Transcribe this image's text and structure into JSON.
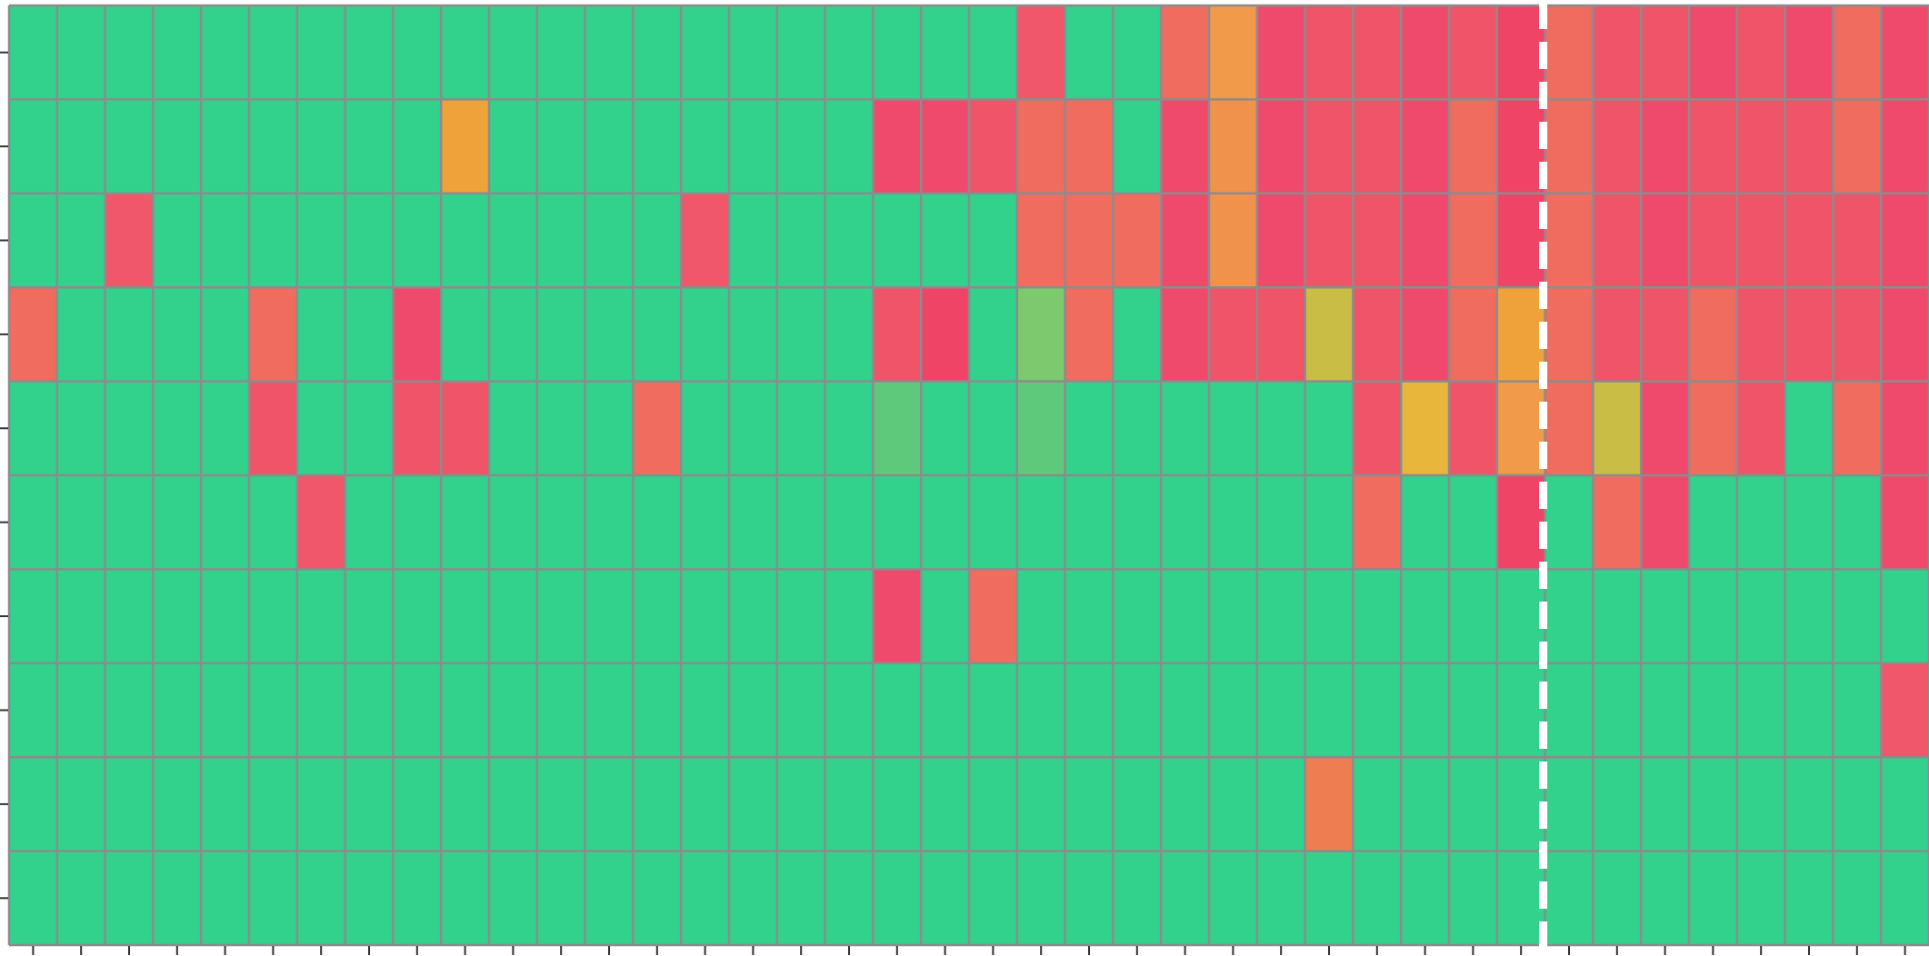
{
  "chart_data": {
    "type": "heatmap",
    "title": "",
    "xlabel": "",
    "ylabel": "",
    "n_rows": 10,
    "n_cols": 40,
    "grid": true,
    "colors": {
      "background": "#ffffff",
      "grid_line": "#8c8c8c",
      "tick": "#333333",
      "divider": "#ffffff"
    },
    "divider_after_column": 32,
    "cells": [
      [
        "#32d18c",
        "#32d18c",
        "#32d18c",
        "#32d18c",
        "#32d18c",
        "#32d18c",
        "#32d18c",
        "#32d18c",
        "#32d18c",
        "#32d18c",
        "#32d18c",
        "#32d18c",
        "#32d18c",
        "#32d18c",
        "#32d18c",
        "#32d18c",
        "#32d18c",
        "#32d18c",
        "#32d18c",
        "#32d18c",
        "#32d18c",
        "#f0576a",
        "#32d18c",
        "#32d18c",
        "#ef6c5f",
        "#f09a4a",
        "#ef4a6c",
        "#ef5468",
        "#ef5468",
        "#ef4a6c",
        "#ef5468",
        "#ef4466",
        "#ef6c5f",
        "#ef5468",
        "#ef5468",
        "#ef4a6c",
        "#ef5468",
        "#ef4a6c",
        "#ef6c5f",
        "#ef4a6c"
      ],
      [
        "#32d18c",
        "#32d18c",
        "#32d18c",
        "#32d18c",
        "#32d18c",
        "#32d18c",
        "#32d18c",
        "#32d18c",
        "#32d18c",
        "#f0a23a",
        "#32d18c",
        "#32d18c",
        "#32d18c",
        "#32d18c",
        "#32d18c",
        "#32d18c",
        "#32d18c",
        "#32d18c",
        "#ef4a6c",
        "#ef4a6c",
        "#ef5468",
        "#ef6c5f",
        "#ef6c5f",
        "#32d18c",
        "#ef4a6c",
        "#f0924c",
        "#ef4a6c",
        "#ef5468",
        "#ef5468",
        "#ef4a6c",
        "#ef6c5f",
        "#ef4466",
        "#ef6c5f",
        "#ef5468",
        "#ef4a6c",
        "#ef5468",
        "#ef5468",
        "#ef5468",
        "#ef6c5f",
        "#ef4a6c"
      ],
      [
        "#32d18c",
        "#32d18c",
        "#f0576a",
        "#32d18c",
        "#32d18c",
        "#32d18c",
        "#32d18c",
        "#32d18c",
        "#32d18c",
        "#32d18c",
        "#32d18c",
        "#32d18c",
        "#32d18c",
        "#32d18c",
        "#f0576a",
        "#32d18c",
        "#32d18c",
        "#32d18c",
        "#32d18c",
        "#32d18c",
        "#32d18c",
        "#ef6c5f",
        "#ef6c5f",
        "#ef6c5f",
        "#ef4a6c",
        "#f0924c",
        "#ef4a6c",
        "#ef5468",
        "#ef5468",
        "#ef4a6c",
        "#ef6c5f",
        "#ef4466",
        "#ef6c5f",
        "#ef5468",
        "#ef4a6c",
        "#ef5468",
        "#ef5468",
        "#ef5468",
        "#ef5468",
        "#ef4a6c"
      ],
      [
        "#ef6c5f",
        "#32d18c",
        "#32d18c",
        "#32d18c",
        "#32d18c",
        "#ef6c5f",
        "#32d18c",
        "#32d18c",
        "#ef4a6c",
        "#32d18c",
        "#32d18c",
        "#32d18c",
        "#32d18c",
        "#32d18c",
        "#32d18c",
        "#32d18c",
        "#32d18c",
        "#32d18c",
        "#ef5468",
        "#ef4466",
        "#32d18c",
        "#7cc96e",
        "#ef6c5f",
        "#32d18c",
        "#ef4a6c",
        "#ef5468",
        "#ef5468",
        "#c9bd46",
        "#ef5468",
        "#ef4a6c",
        "#ef6c5f",
        "#f0a23a",
        "#ef6c5f",
        "#ef5468",
        "#ef5468",
        "#ef6c5f",
        "#ef5468",
        "#ef5468",
        "#ef5468",
        "#ef4a6c"
      ],
      [
        "#32d18c",
        "#32d18c",
        "#32d18c",
        "#32d18c",
        "#32d18c",
        "#ef5468",
        "#32d18c",
        "#32d18c",
        "#ef5468",
        "#ef5468",
        "#32d18c",
        "#32d18c",
        "#32d18c",
        "#ef6c5f",
        "#32d18c",
        "#32d18c",
        "#32d18c",
        "#32d18c",
        "#5ec97a",
        "#32d18c",
        "#32d18c",
        "#5ec97a",
        "#32d18c",
        "#32d18c",
        "#32d18c",
        "#32d18c",
        "#32d18c",
        "#32d18c",
        "#ef5468",
        "#e8b63a",
        "#ef5468",
        "#f09a4a",
        "#ef6c5f",
        "#c9bd46",
        "#ef4a6c",
        "#ef6c5f",
        "#ef5468",
        "#32d18c",
        "#ef6c5f",
        "#ef4a6c"
      ],
      [
        "#32d18c",
        "#32d18c",
        "#32d18c",
        "#32d18c",
        "#32d18c",
        "#32d18c",
        "#f0576a",
        "#32d18c",
        "#32d18c",
        "#32d18c",
        "#32d18c",
        "#32d18c",
        "#32d18c",
        "#32d18c",
        "#32d18c",
        "#32d18c",
        "#32d18c",
        "#32d18c",
        "#32d18c",
        "#32d18c",
        "#32d18c",
        "#32d18c",
        "#32d18c",
        "#32d18c",
        "#32d18c",
        "#32d18c",
        "#32d18c",
        "#32d18c",
        "#ef6c5f",
        "#32d18c",
        "#32d18c",
        "#ef4466",
        "#32d18c",
        "#ef6c5f",
        "#ef4a6c",
        "#32d18c",
        "#32d18c",
        "#32d18c",
        "#32d18c",
        "#ef4a6c"
      ],
      [
        "#32d18c",
        "#32d18c",
        "#32d18c",
        "#32d18c",
        "#32d18c",
        "#32d18c",
        "#32d18c",
        "#32d18c",
        "#32d18c",
        "#32d18c",
        "#32d18c",
        "#32d18c",
        "#32d18c",
        "#32d18c",
        "#32d18c",
        "#32d18c",
        "#32d18c",
        "#32d18c",
        "#ef4a6c",
        "#32d18c",
        "#ef6c5f",
        "#32d18c",
        "#32d18c",
        "#32d18c",
        "#32d18c",
        "#32d18c",
        "#32d18c",
        "#32d18c",
        "#32d18c",
        "#32d18c",
        "#32d18c",
        "#32d18c",
        "#32d18c",
        "#32d18c",
        "#32d18c",
        "#32d18c",
        "#32d18c",
        "#32d18c",
        "#32d18c",
        "#32d18c"
      ],
      [
        "#32d18c",
        "#32d18c",
        "#32d18c",
        "#32d18c",
        "#32d18c",
        "#32d18c",
        "#32d18c",
        "#32d18c",
        "#32d18c",
        "#32d18c",
        "#32d18c",
        "#32d18c",
        "#32d18c",
        "#32d18c",
        "#32d18c",
        "#32d18c",
        "#32d18c",
        "#32d18c",
        "#32d18c",
        "#32d18c",
        "#32d18c",
        "#32d18c",
        "#32d18c",
        "#32d18c",
        "#32d18c",
        "#32d18c",
        "#32d18c",
        "#32d18c",
        "#32d18c",
        "#32d18c",
        "#32d18c",
        "#32d18c",
        "#32d18c",
        "#32d18c",
        "#32d18c",
        "#32d18c",
        "#32d18c",
        "#32d18c",
        "#32d18c",
        "#f0576a"
      ],
      [
        "#32d18c",
        "#32d18c",
        "#32d18c",
        "#32d18c",
        "#32d18c",
        "#32d18c",
        "#32d18c",
        "#32d18c",
        "#32d18c",
        "#32d18c",
        "#32d18c",
        "#32d18c",
        "#32d18c",
        "#32d18c",
        "#32d18c",
        "#32d18c",
        "#32d18c",
        "#32d18c",
        "#32d18c",
        "#32d18c",
        "#32d18c",
        "#32d18c",
        "#32d18c",
        "#32d18c",
        "#32d18c",
        "#32d18c",
        "#32d18c",
        "#ef7d52",
        "#32d18c",
        "#32d18c",
        "#32d18c",
        "#32d18c",
        "#32d18c",
        "#32d18c",
        "#32d18c",
        "#32d18c",
        "#32d18c",
        "#32d18c",
        "#32d18c",
        "#32d18c"
      ],
      [
        "#32d18c",
        "#32d18c",
        "#32d18c",
        "#32d18c",
        "#32d18c",
        "#32d18c",
        "#32d18c",
        "#32d18c",
        "#32d18c",
        "#32d18c",
        "#32d18c",
        "#32d18c",
        "#32d18c",
        "#32d18c",
        "#32d18c",
        "#32d18c",
        "#32d18c",
        "#32d18c",
        "#32d18c",
        "#32d18c",
        "#32d18c",
        "#32d18c",
        "#32d18c",
        "#32d18c",
        "#32d18c",
        "#32d18c",
        "#32d18c",
        "#32d18c",
        "#32d18c",
        "#32d18c",
        "#32d18c",
        "#32d18c",
        "#32d18c",
        "#32d18c",
        "#32d18c",
        "#32d18c",
        "#32d18c",
        "#32d18c",
        "#32d18c",
        "#32d18c"
      ]
    ]
  }
}
